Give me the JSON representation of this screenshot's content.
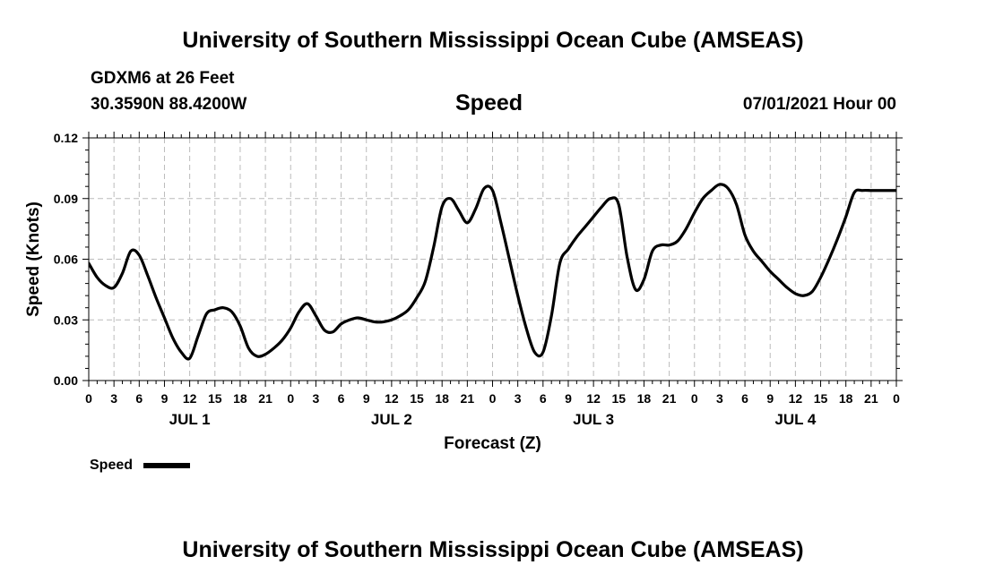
{
  "header": {
    "title": "University of Southern Mississippi Ocean Cube (AMSEAS)",
    "station": "GDXM6 at 26 Feet",
    "coords": "30.3590N  88.4200W",
    "plot_title": "Speed",
    "datetime": "07/01/2021 Hour 00"
  },
  "footer": {
    "title": "University of Southern Mississippi Ocean Cube (AMSEAS)"
  },
  "legend": {
    "label": "Speed"
  },
  "colors": {
    "line": "#000000",
    "grid": "#bbbbbb"
  },
  "chart_data": {
    "type": "line",
    "title": "Speed",
    "xlabel": "Forecast (Z)",
    "ylabel": "Speed (Knots)",
    "xlim": [
      0,
      96
    ],
    "ylim": [
      0,
      0.12
    ],
    "yticks": [
      "0.00",
      "0.03",
      "0.06",
      "0.09",
      "0.12"
    ],
    "ytick_values": [
      0,
      0.03,
      0.06,
      0.09,
      0.12
    ],
    "xtick_labels": [
      "0",
      "3",
      "6",
      "9",
      "12",
      "15",
      "18",
      "21",
      "0",
      "3",
      "6",
      "9",
      "12",
      "15",
      "18",
      "21",
      "0",
      "3",
      "6",
      "9",
      "12",
      "15",
      "18",
      "21",
      "0",
      "3",
      "6",
      "9",
      "12",
      "15",
      "18",
      "21",
      "0"
    ],
    "xtick_hours": [
      0,
      3,
      6,
      9,
      12,
      15,
      18,
      21,
      24,
      27,
      30,
      33,
      36,
      39,
      42,
      45,
      48,
      51,
      54,
      57,
      60,
      63,
      66,
      69,
      72,
      75,
      78,
      81,
      84,
      87,
      90,
      93,
      96
    ],
    "day_labels": [
      {
        "label": "JUL 1",
        "hour": 12
      },
      {
        "label": "JUL 2",
        "hour": 36
      },
      {
        "label": "JUL 3",
        "hour": 60
      },
      {
        "label": "JUL 4",
        "hour": 84
      }
    ],
    "grid": true,
    "legend_position": "bottom-left",
    "series": [
      {
        "name": "Speed",
        "x": [
          0,
          1,
          2,
          3,
          4,
          5,
          6,
          7,
          8,
          9,
          10,
          11,
          12,
          13,
          14,
          15,
          16,
          17,
          18,
          19,
          20,
          21,
          22,
          23,
          24,
          25,
          26,
          27,
          28,
          29,
          30,
          31,
          32,
          33,
          34,
          35,
          36,
          37,
          38,
          39,
          40,
          41,
          42,
          43,
          44,
          45,
          46,
          47,
          48,
          49,
          50,
          51,
          52,
          53,
          54,
          55,
          56,
          57,
          58,
          59,
          60,
          61,
          62,
          63,
          64,
          65,
          66,
          67,
          68,
          69,
          70,
          71,
          72,
          73,
          74,
          75,
          76,
          77,
          78,
          79,
          80,
          81,
          82,
          83,
          84,
          85,
          86,
          87,
          88,
          89,
          90,
          91,
          92,
          93,
          94,
          95,
          96
        ],
        "values": [
          0.058,
          0.051,
          0.047,
          0.046,
          0.053,
          0.064,
          0.062,
          0.052,
          0.041,
          0.031,
          0.021,
          0.014,
          0.011,
          0.022,
          0.033,
          0.035,
          0.036,
          0.034,
          0.027,
          0.016,
          0.012,
          0.013,
          0.016,
          0.02,
          0.026,
          0.034,
          0.038,
          0.032,
          0.025,
          0.024,
          0.028,
          0.03,
          0.031,
          0.03,
          0.029,
          0.029,
          0.03,
          0.032,
          0.035,
          0.041,
          0.049,
          0.066,
          0.086,
          0.09,
          0.084,
          0.078,
          0.085,
          0.095,
          0.094,
          0.078,
          0.06,
          0.042,
          0.026,
          0.014,
          0.014,
          0.032,
          0.058,
          0.065,
          0.071,
          0.076,
          0.081,
          0.086,
          0.09,
          0.087,
          0.061,
          0.045,
          0.05,
          0.064,
          0.067,
          0.067,
          0.069,
          0.075,
          0.083,
          0.09,
          0.094,
          0.097,
          0.095,
          0.087,
          0.072,
          0.064,
          0.059,
          0.054,
          0.05,
          0.046,
          0.043,
          0.042,
          0.044,
          0.051,
          0.06,
          0.07,
          0.081,
          0.093,
          0.094,
          0.094,
          0.094,
          0.094,
          0.094
        ]
      }
    ]
  }
}
